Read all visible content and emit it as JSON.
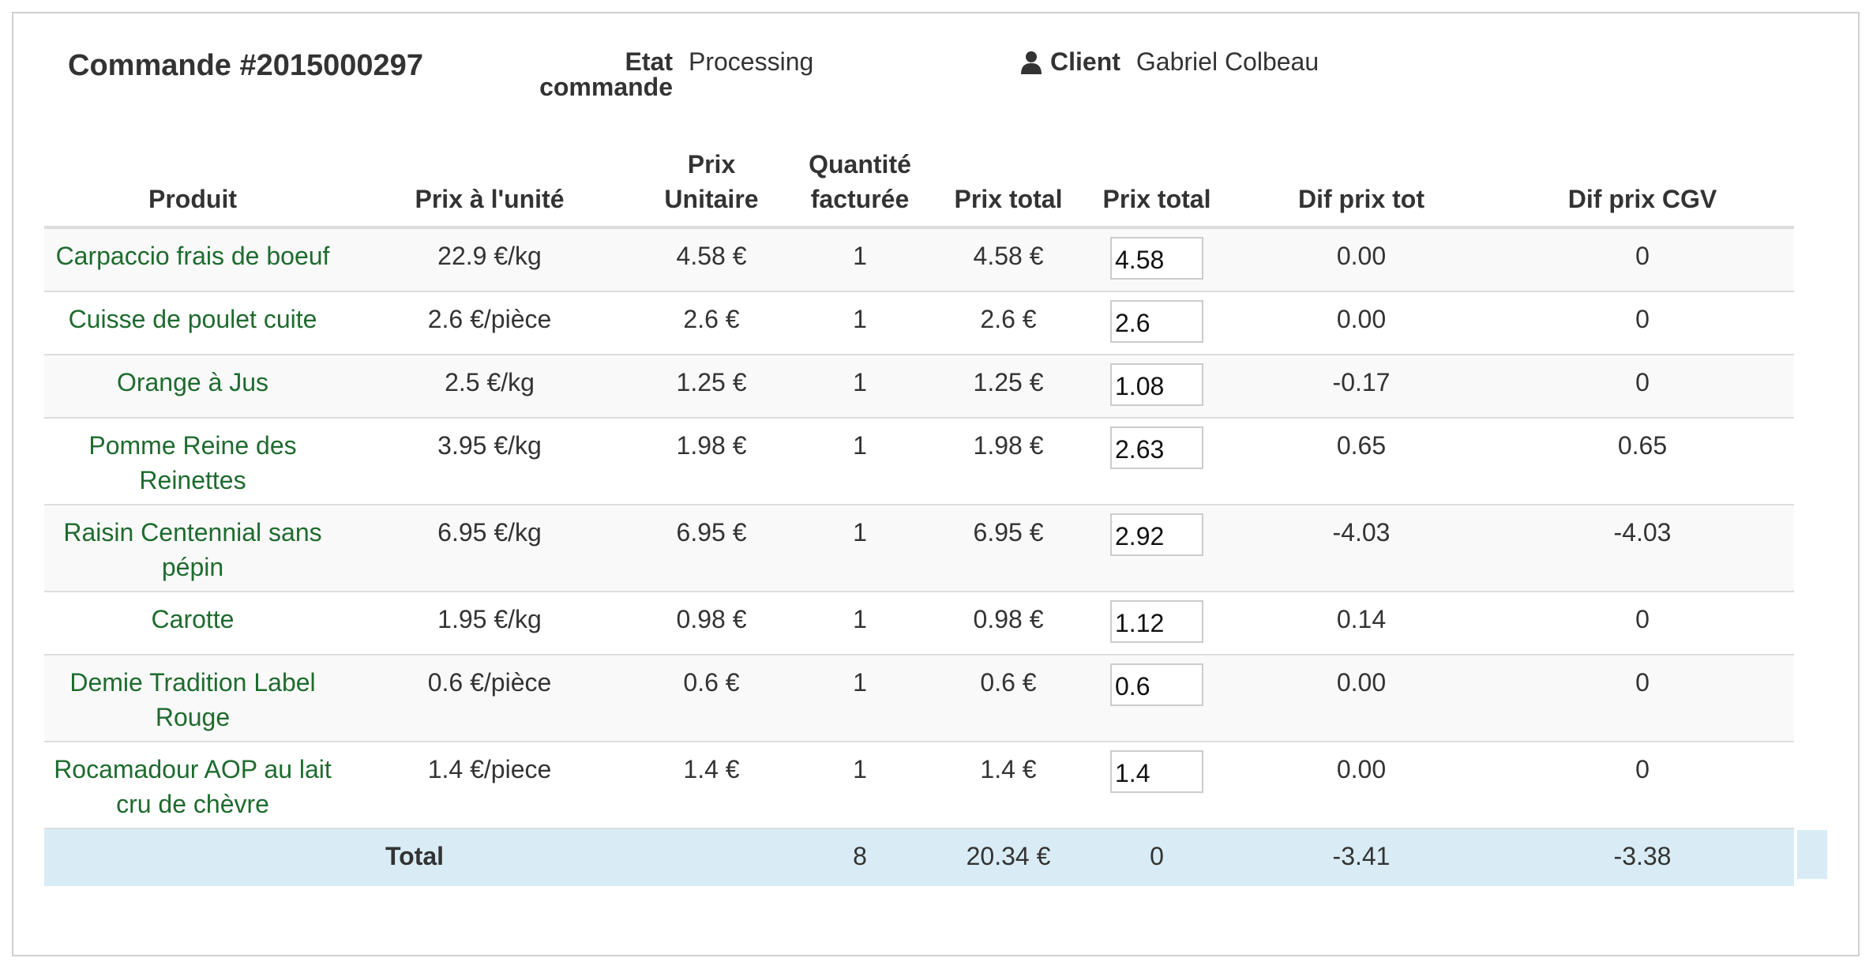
{
  "order": {
    "title": "Commande #2015000297",
    "etat_label": "Etat commande",
    "etat_value": "Processing",
    "client_label": "Client",
    "client_value": "Gabriel Colbeau"
  },
  "table": {
    "headers": [
      "Produit",
      "Prix à l'unité",
      "Prix Unitaire",
      "Quantité facturée",
      "Prix total",
      "Prix total",
      "Dif prix tot",
      "Dif prix CGV"
    ],
    "rows": [
      {
        "product": "Carpaccio frais de boeuf",
        "unit_price": "22.9 €/kg",
        "prix_unitaire": "4.58 €",
        "quantity": "1",
        "prix_total": "4.58 €",
        "prix_total_input": "4.58",
        "dif_prix_tot": "0.00",
        "dif_prix_cgv": "0"
      },
      {
        "product": "Cuisse de poulet cuite",
        "unit_price": "2.6 €/pièce",
        "prix_unitaire": "2.6 €",
        "quantity": "1",
        "prix_total": "2.6 €",
        "prix_total_input": "2.6",
        "dif_prix_tot": "0.00",
        "dif_prix_cgv": "0"
      },
      {
        "product": "Orange à Jus",
        "unit_price": "2.5 €/kg",
        "prix_unitaire": "1.25 €",
        "quantity": "1",
        "prix_total": "1.25 €",
        "prix_total_input": "1.08",
        "dif_prix_tot": "-0.17",
        "dif_prix_cgv": "0"
      },
      {
        "product": "Pomme Reine des Reinettes",
        "unit_price": "3.95 €/kg",
        "prix_unitaire": "1.98 €",
        "quantity": "1",
        "prix_total": "1.98 €",
        "prix_total_input": "2.63",
        "dif_prix_tot": "0.65",
        "dif_prix_cgv": "0.65"
      },
      {
        "product": "Raisin Centennial sans pépin",
        "unit_price": "6.95 €/kg",
        "prix_unitaire": "6.95 €",
        "quantity": "1",
        "prix_total": "6.95 €",
        "prix_total_input": "2.92",
        "dif_prix_tot": "-4.03",
        "dif_prix_cgv": "-4.03"
      },
      {
        "product": "Carotte",
        "unit_price": "1.95 €/kg",
        "prix_unitaire": "0.98 €",
        "quantity": "1",
        "prix_total": "0.98 €",
        "prix_total_input": "1.12",
        "dif_prix_tot": "0.14",
        "dif_prix_cgv": "0"
      },
      {
        "product": "Demie Tradition Label Rouge",
        "unit_price": "0.6 €/pièce",
        "prix_unitaire": "0.6 €",
        "quantity": "1",
        "prix_total": "0.6 €",
        "prix_total_input": "0.6",
        "dif_prix_tot": "0.00",
        "dif_prix_cgv": "0"
      },
      {
        "product": "Rocamadour AOP au lait cru de chèvre",
        "unit_price": "1.4 €/piece",
        "prix_unitaire": "1.4 €",
        "quantity": "1",
        "prix_total": "1.4 €",
        "prix_total_input": "1.4",
        "dif_prix_tot": "0.00",
        "dif_prix_cgv": "0"
      }
    ],
    "footer": {
      "label": "Total",
      "quantity": "8",
      "prix_total": "20.34 €",
      "prix_total_input": "0",
      "dif_prix_tot": "-3.41",
      "dif_prix_cgv": "-3.38"
    }
  },
  "icons": {
    "client": "user-icon"
  },
  "colors": {
    "product_link": "#1e6b2e",
    "total_row_bg": "#d9ecf5",
    "striped_row_bg": "#f9f9f9"
  }
}
